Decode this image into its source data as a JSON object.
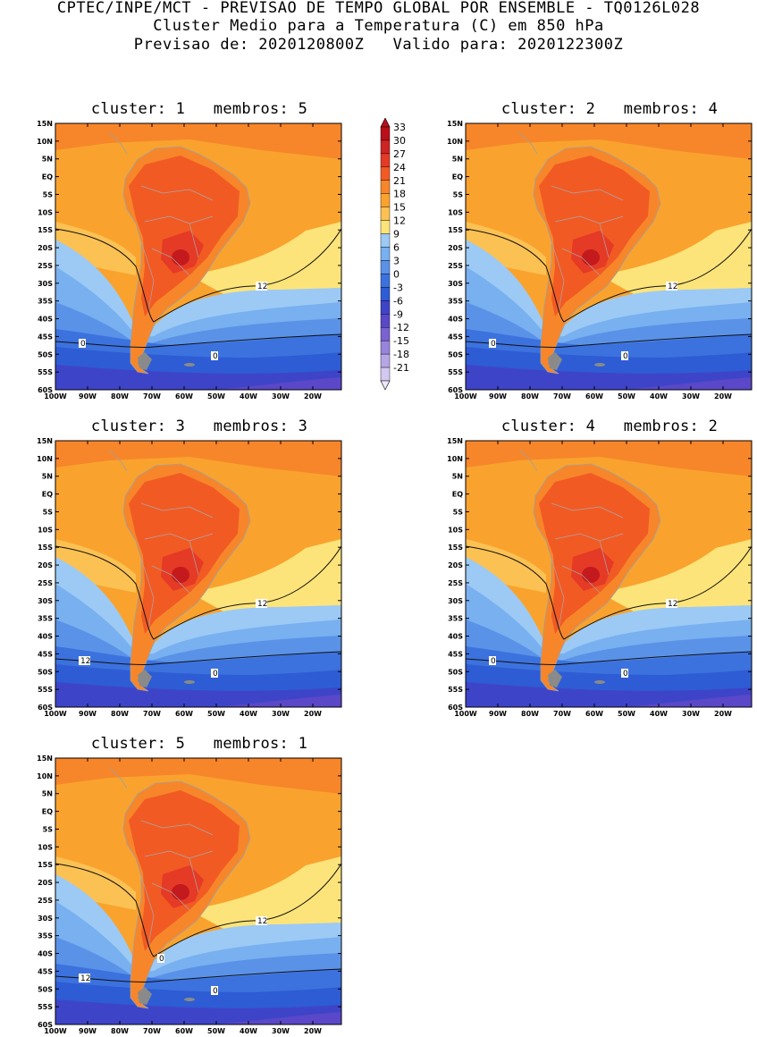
{
  "header": {
    "line1": "CPTEC/INPE/MCT - PREVISAO DE TEMPO GLOBAL POR ENSEMBLE - TQ0126L028",
    "line2": "Cluster Medio para a Temperatura (C) em 850 hPa",
    "line3": "Previsao de: 2020120800Z   Valido para: 2020122300Z"
  },
  "axes": {
    "lat_labels": [
      "15N",
      "10N",
      "5N",
      "EQ",
      "5S",
      "10S",
      "15S",
      "20S",
      "25S",
      "30S",
      "35S",
      "40S",
      "45S",
      "50S",
      "55S",
      "60S"
    ],
    "lon_labels": [
      "100W",
      "90W",
      "80W",
      "70W",
      "60W",
      "50W",
      "40W",
      "30W",
      "20W"
    ]
  },
  "colorbar": {
    "levels": [
      "33",
      "30",
      "27",
      "24",
      "21",
      "18",
      "15",
      "12",
      "9",
      "6",
      "3",
      "0",
      "-3",
      "-6",
      "-9",
      "-12",
      "-15",
      "-18",
      "-21"
    ],
    "colors": [
      "#b8101a",
      "#cf2424",
      "#e53a26",
      "#f25a24",
      "#f7862a",
      "#f9a32e",
      "#fbc153",
      "#fde47a",
      "#9ccaf5",
      "#78b0f0",
      "#5a92e8",
      "#3c72de",
      "#2e5cd4",
      "#3e44c8",
      "#5a48c8",
      "#7a62d2",
      "#9884dc",
      "#b6a6e6",
      "#d4c8f0"
    ]
  },
  "panels": [
    {
      "title": "cluster: 1   membros: 5",
      "labels": [
        "12",
        "0",
        "0"
      ]
    },
    {
      "title": "cluster: 2   membros: 4",
      "labels": [
        "12",
        "0",
        "0"
      ]
    },
    {
      "title": "cluster: 3   membros: 3",
      "labels": [
        "12",
        "12",
        "0"
      ]
    },
    {
      "title": "cluster: 4   membros: 2",
      "labels": [
        "12",
        "0",
        "0"
      ]
    },
    {
      "title": "cluster: 5   membros: 1",
      "labels": [
        "12",
        "12",
        "0",
        "0"
      ]
    }
  ]
}
